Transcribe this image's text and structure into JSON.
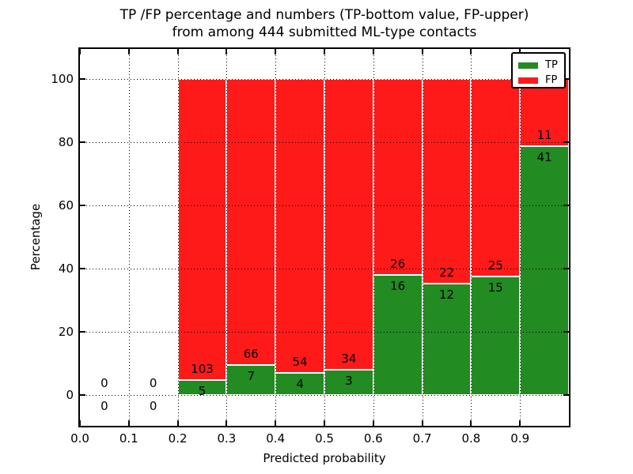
{
  "figure": {
    "title_line1": "TP /FP percentage and numbers (TP-bottom value, FP-upper)",
    "title_line2": "from among 444 submitted ML-type contacts",
    "xlabel": "Predicted probability",
    "ylabel": "Percentage",
    "total_contacts": 444,
    "background_color": "#ffffff",
    "text_color": "#000000"
  },
  "legend": {
    "position": "upper right",
    "entries": [
      {
        "label": "TP",
        "color": "#228b22"
      },
      {
        "label": "FP",
        "color": "#ff1a1a"
      }
    ]
  },
  "chart_data": {
    "type": "bar",
    "stacked": true,
    "title": "TP /FP percentage and numbers (TP-bottom value, FP-upper) from among 444 submitted ML-type contacts",
    "xlabel": "Predicted probability",
    "ylabel": "Percentage",
    "grid": "dotted both axes",
    "xlim": [
      0.0,
      1.0
    ],
    "ylim": [
      -9.75,
      109.5
    ],
    "x_ticks": [
      "0.0",
      "0.1",
      "0.2",
      "0.3",
      "0.4",
      "0.5",
      "0.6",
      "0.7",
      "0.8",
      "0.9"
    ],
    "y_ticks": [
      "0",
      "20",
      "40",
      "60",
      "80",
      "100"
    ],
    "bin_width": 0.1,
    "series": [
      {
        "name": "TP",
        "color": "#228b22",
        "position": "bottom"
      },
      {
        "name": "FP",
        "color": "#ff1a1a",
        "position": "top"
      }
    ],
    "bins": [
      {
        "x0": 0.0,
        "tp": 0,
        "fp": 0,
        "tp_pct": null,
        "fp_pct": null
      },
      {
        "x0": 0.1,
        "tp": 0,
        "fp": 0,
        "tp_pct": null,
        "fp_pct": null
      },
      {
        "x0": 0.2,
        "tp": 5,
        "fp": 103,
        "tp_pct": 4.63,
        "fp_pct": 95.37
      },
      {
        "x0": 0.3,
        "tp": 7,
        "fp": 66,
        "tp_pct": 9.59,
        "fp_pct": 90.41
      },
      {
        "x0": 0.4,
        "tp": 4,
        "fp": 54,
        "tp_pct": 6.9,
        "fp_pct": 93.1
      },
      {
        "x0": 0.5,
        "tp": 3,
        "fp": 34,
        "tp_pct": 8.11,
        "fp_pct": 91.89
      },
      {
        "x0": 0.6,
        "tp": 16,
        "fp": 26,
        "tp_pct": 38.1,
        "fp_pct": 61.9
      },
      {
        "x0": 0.7,
        "tp": 12,
        "fp": 22,
        "tp_pct": 35.29,
        "fp_pct": 64.71
      },
      {
        "x0": 0.8,
        "tp": 15,
        "fp": 25,
        "tp_pct": 37.5,
        "fp_pct": 62.5
      },
      {
        "x0": 0.9,
        "tp": 41,
        "fp": 11,
        "tp_pct": 78.85,
        "fp_pct": 21.15
      }
    ]
  }
}
